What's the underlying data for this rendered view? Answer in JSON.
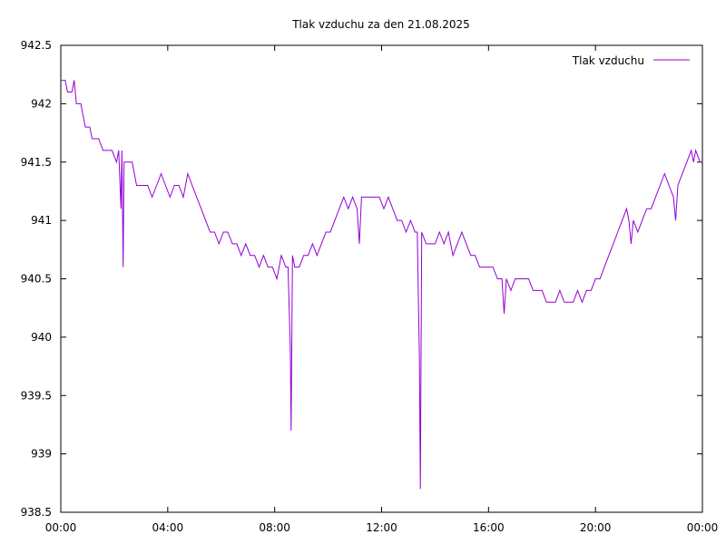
{
  "chart_data": {
    "type": "line",
    "title": "Tlak vzduchu za den 21.08.2025",
    "xlabel": "",
    "ylabel": "",
    "xlim": [
      "00:00",
      "24:00"
    ],
    "ylim": [
      938.5,
      942.5
    ],
    "x_ticks": [
      "00:00",
      "04:00",
      "08:00",
      "12:00",
      "16:00",
      "20:00",
      "00:00"
    ],
    "y_ticks": [
      "938.5",
      "939",
      "939.5",
      "940",
      "940.5",
      "941",
      "941.5",
      "942",
      "942.5"
    ],
    "grid": false,
    "legend": "top-right",
    "color": "#9400d3",
    "series": [
      {
        "name": "Tlak vzduchu",
        "points": [
          [
            "00:00",
            942.2
          ],
          [
            "00:10",
            942.2
          ],
          [
            "00:15",
            942.1
          ],
          [
            "00:25",
            942.1
          ],
          [
            "00:30",
            942.2
          ],
          [
            "00:35",
            942.0
          ],
          [
            "00:45",
            942.0
          ],
          [
            "00:50",
            941.9
          ],
          [
            "00:55",
            941.8
          ],
          [
            "01:05",
            941.8
          ],
          [
            "01:10",
            941.7
          ],
          [
            "01:20",
            941.7
          ],
          [
            "01:25",
            941.7
          ],
          [
            "01:35",
            941.6
          ],
          [
            "01:45",
            941.6
          ],
          [
            "01:55",
            941.6
          ],
          [
            "02:05",
            941.5
          ],
          [
            "02:10",
            941.6
          ],
          [
            "02:15",
            941.1
          ],
          [
            "02:17",
            941.6
          ],
          [
            "02:20",
            940.6
          ],
          [
            "02:22",
            941.5
          ],
          [
            "02:30",
            941.5
          ],
          [
            "02:40",
            941.5
          ],
          [
            "02:50",
            941.3
          ],
          [
            "03:00",
            941.3
          ],
          [
            "03:15",
            941.3
          ],
          [
            "03:25",
            941.2
          ],
          [
            "03:35",
            941.3
          ],
          [
            "03:45",
            941.4
          ],
          [
            "03:55",
            941.3
          ],
          [
            "04:05",
            941.2
          ],
          [
            "04:15",
            941.3
          ],
          [
            "04:25",
            941.3
          ],
          [
            "04:35",
            941.2
          ],
          [
            "04:45",
            941.4
          ],
          [
            "04:55",
            941.3
          ],
          [
            "05:05",
            941.2
          ],
          [
            "05:15",
            941.1
          ],
          [
            "05:25",
            941.0
          ],
          [
            "05:35",
            940.9
          ],
          [
            "05:45",
            940.9
          ],
          [
            "05:55",
            940.8
          ],
          [
            "06:05",
            940.9
          ],
          [
            "06:15",
            940.9
          ],
          [
            "06:25",
            940.8
          ],
          [
            "06:35",
            940.8
          ],
          [
            "06:45",
            940.7
          ],
          [
            "06:55",
            940.8
          ],
          [
            "07:05",
            940.7
          ],
          [
            "07:15",
            940.7
          ],
          [
            "07:25",
            940.6
          ],
          [
            "07:35",
            940.7
          ],
          [
            "07:45",
            940.6
          ],
          [
            "07:55",
            940.6
          ],
          [
            "08:05",
            940.5
          ],
          [
            "08:15",
            940.7
          ],
          [
            "08:25",
            940.6
          ],
          [
            "08:30",
            940.6
          ],
          [
            "08:35",
            939.9
          ],
          [
            "08:37",
            939.2
          ],
          [
            "08:40",
            940.7
          ],
          [
            "08:45",
            940.6
          ],
          [
            "08:55",
            940.6
          ],
          [
            "09:05",
            940.7
          ],
          [
            "09:15",
            940.7
          ],
          [
            "09:25",
            940.8
          ],
          [
            "09:35",
            940.7
          ],
          [
            "09:45",
            940.8
          ],
          [
            "09:55",
            940.9
          ],
          [
            "10:05",
            940.9
          ],
          [
            "10:15",
            941.0
          ],
          [
            "10:25",
            941.1
          ],
          [
            "10:35",
            941.2
          ],
          [
            "10:45",
            941.1
          ],
          [
            "10:55",
            941.2
          ],
          [
            "11:05",
            941.1
          ],
          [
            "11:10",
            940.8
          ],
          [
            "11:15",
            941.2
          ],
          [
            "11:25",
            941.2
          ],
          [
            "11:35",
            941.2
          ],
          [
            "11:45",
            941.2
          ],
          [
            "11:55",
            941.2
          ],
          [
            "12:05",
            941.1
          ],
          [
            "12:15",
            941.2
          ],
          [
            "12:25",
            941.1
          ],
          [
            "12:35",
            941.0
          ],
          [
            "12:45",
            941.0
          ],
          [
            "12:55",
            940.9
          ],
          [
            "13:05",
            941.0
          ],
          [
            "13:15",
            940.9
          ],
          [
            "13:20",
            940.9
          ],
          [
            "13:25",
            939.8
          ],
          [
            "13:27",
            938.7
          ],
          [
            "13:30",
            940.9
          ],
          [
            "13:40",
            940.8
          ],
          [
            "13:50",
            940.8
          ],
          [
            "14:00",
            940.8
          ],
          [
            "14:10",
            940.9
          ],
          [
            "14:20",
            940.8
          ],
          [
            "14:30",
            940.9
          ],
          [
            "14:40",
            940.7
          ],
          [
            "14:50",
            940.8
          ],
          [
            "15:00",
            940.9
          ],
          [
            "15:10",
            940.8
          ],
          [
            "15:20",
            940.7
          ],
          [
            "15:30",
            940.7
          ],
          [
            "15:40",
            940.6
          ],
          [
            "15:50",
            940.6
          ],
          [
            "16:00",
            940.6
          ],
          [
            "16:10",
            940.6
          ],
          [
            "16:20",
            940.5
          ],
          [
            "16:30",
            940.5
          ],
          [
            "16:35",
            940.2
          ],
          [
            "16:40",
            940.5
          ],
          [
            "16:50",
            940.4
          ],
          [
            "17:00",
            940.5
          ],
          [
            "17:10",
            940.5
          ],
          [
            "17:20",
            940.5
          ],
          [
            "17:30",
            940.5
          ],
          [
            "17:40",
            940.4
          ],
          [
            "17:50",
            940.4
          ],
          [
            "18:00",
            940.4
          ],
          [
            "18:10",
            940.3
          ],
          [
            "18:20",
            940.3
          ],
          [
            "18:30",
            940.3
          ],
          [
            "18:40",
            940.4
          ],
          [
            "18:50",
            940.3
          ],
          [
            "19:00",
            940.3
          ],
          [
            "19:10",
            940.3
          ],
          [
            "19:20",
            940.4
          ],
          [
            "19:30",
            940.3
          ],
          [
            "19:40",
            940.4
          ],
          [
            "19:50",
            940.4
          ],
          [
            "20:00",
            940.5
          ],
          [
            "20:10",
            940.5
          ],
          [
            "20:20",
            940.6
          ],
          [
            "20:30",
            940.7
          ],
          [
            "20:40",
            940.8
          ],
          [
            "20:50",
            940.9
          ],
          [
            "21:00",
            941.0
          ],
          [
            "21:10",
            941.1
          ],
          [
            "21:15",
            941.0
          ],
          [
            "21:20",
            940.8
          ],
          [
            "21:25",
            941.0
          ],
          [
            "21:35",
            940.9
          ],
          [
            "21:45",
            941.0
          ],
          [
            "21:55",
            941.1
          ],
          [
            "22:05",
            941.1
          ],
          [
            "22:15",
            941.2
          ],
          [
            "22:25",
            941.3
          ],
          [
            "22:35",
            941.4
          ],
          [
            "22:45",
            941.3
          ],
          [
            "22:55",
            941.2
          ],
          [
            "23:00",
            941.0
          ],
          [
            "23:05",
            941.3
          ],
          [
            "23:15",
            941.4
          ],
          [
            "23:25",
            941.5
          ],
          [
            "23:35",
            941.6
          ],
          [
            "23:40",
            941.5
          ],
          [
            "23:45",
            941.6
          ],
          [
            "23:55",
            941.5
          ],
          [
            "24:00",
            941.5
          ]
        ]
      }
    ]
  }
}
